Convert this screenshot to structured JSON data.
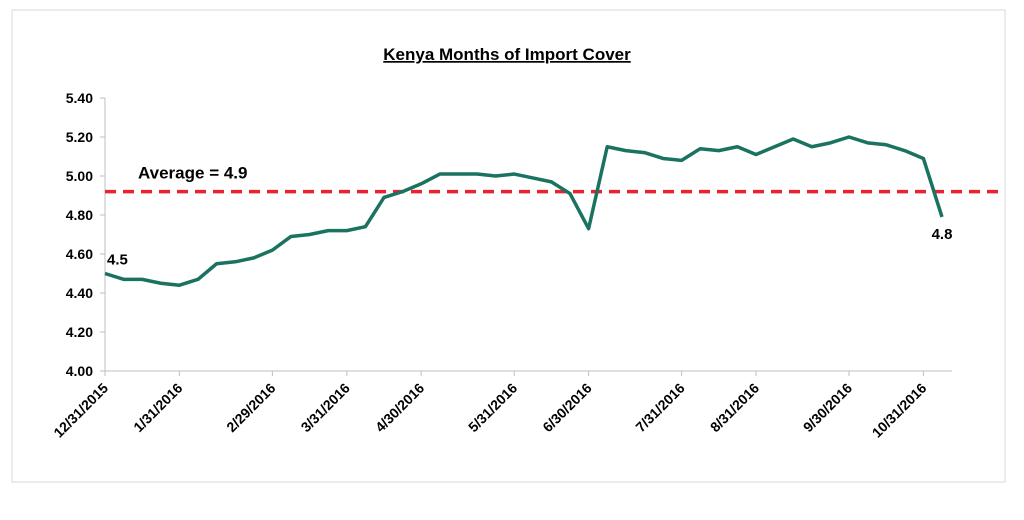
{
  "chart_data": {
    "type": "line",
    "title": "Kenya Months of Import Cover",
    "categories": [
      "12/31/2015",
      null,
      null,
      null,
      "1/31/2016",
      null,
      null,
      null,
      null,
      "2/29/2016",
      null,
      null,
      null,
      "3/31/2016",
      null,
      null,
      null,
      "4/30/2016",
      null,
      null,
      null,
      null,
      "5/31/2016",
      null,
      null,
      null,
      "6/30/2016",
      null,
      null,
      null,
      null,
      "7/31/2016",
      null,
      null,
      null,
      "8/31/2016",
      null,
      null,
      null,
      null,
      "9/30/2016",
      null,
      null,
      null,
      "10/31/2016",
      null
    ],
    "series": [
      {
        "name": "Months of Import Cover",
        "color": "#1a7360",
        "values": [
          4.5,
          4.47,
          4.47,
          4.45,
          4.44,
          4.47,
          4.55,
          4.56,
          4.58,
          4.62,
          4.69,
          4.7,
          4.72,
          4.72,
          4.74,
          4.89,
          4.92,
          4.96,
          5.01,
          5.01,
          5.01,
          5.0,
          5.01,
          4.99,
          4.97,
          4.91,
          4.73,
          5.15,
          5.13,
          5.12,
          5.09,
          5.08,
          5.14,
          5.13,
          5.15,
          5.11,
          5.15,
          5.19,
          5.15,
          5.17,
          5.2,
          5.17,
          5.16,
          5.13,
          5.09,
          4.79
        ],
        "value_labels": [
          "4.5",
          null,
          null,
          null,
          null,
          null,
          null,
          null,
          null,
          null,
          null,
          null,
          null,
          null,
          null,
          null,
          null,
          null,
          null,
          null,
          null,
          null,
          null,
          null,
          null,
          null,
          null,
          null,
          null,
          null,
          null,
          null,
          null,
          null,
          null,
          null,
          null,
          null,
          null,
          null,
          null,
          null,
          null,
          null,
          null,
          "4.8"
        ]
      }
    ],
    "average_line": {
      "value": 4.92,
      "label": "Average = 4.9",
      "color": "#e8222e"
    },
    "ylim": [
      4.0,
      5.4
    ],
    "yticks": [
      {
        "value": 4.0,
        "label": "4.00"
      },
      {
        "value": 4.2,
        "label": "4.20"
      },
      {
        "value": 4.4,
        "label": "4.40"
      },
      {
        "value": 4.6,
        "label": "4.60"
      },
      {
        "value": 4.8,
        "label": "4.80"
      },
      {
        "value": 5.0,
        "label": "5.00"
      },
      {
        "value": 5.2,
        "label": "5.20"
      },
      {
        "value": 5.4,
        "label": "5.40"
      }
    ]
  }
}
